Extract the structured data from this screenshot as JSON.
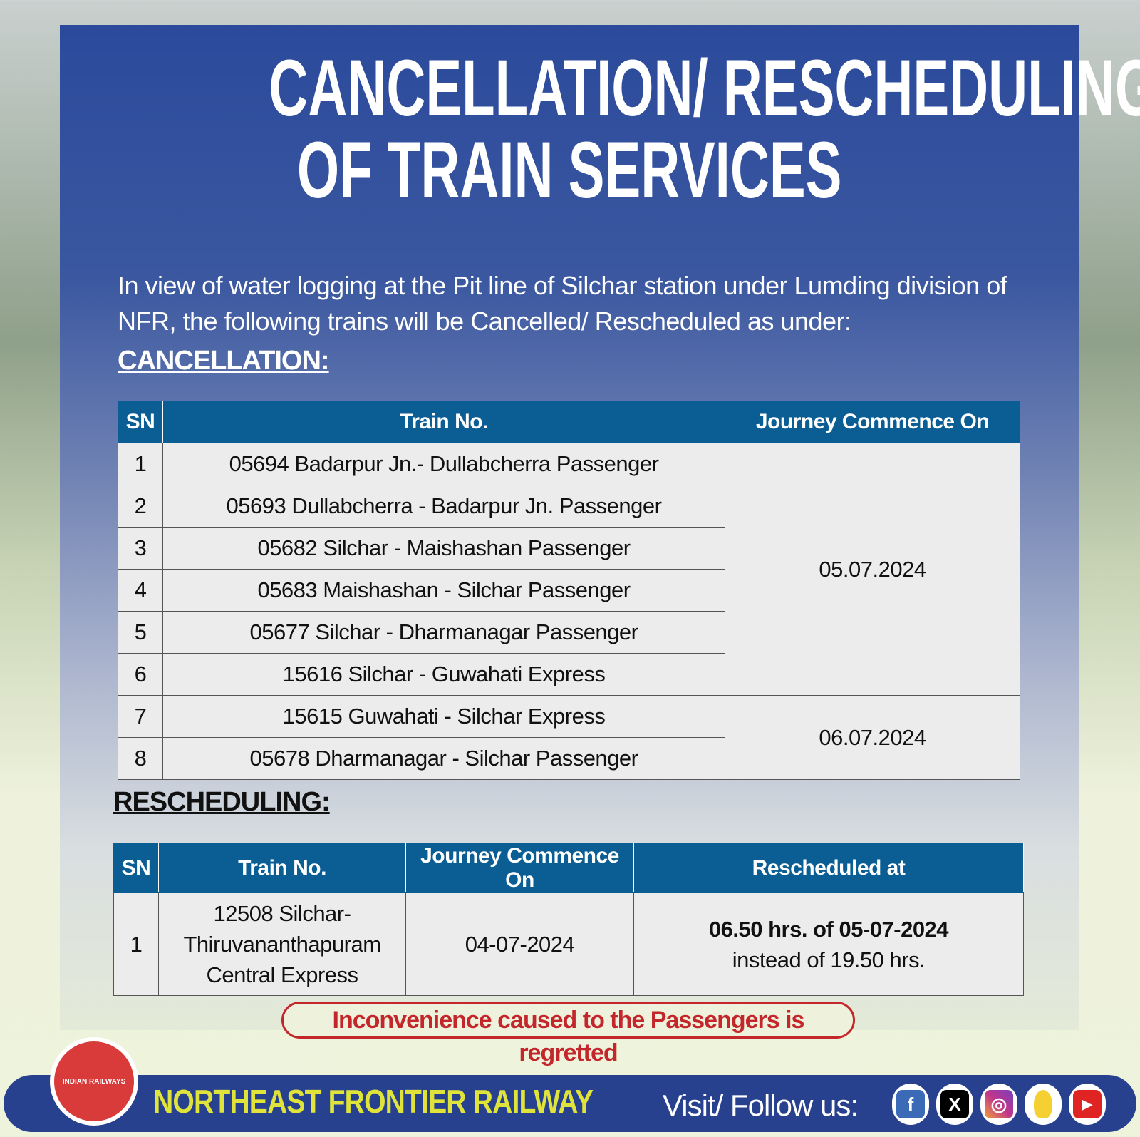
{
  "title": {
    "line1": "CANCELLATION/ RESCHEDULING",
    "line2": "OF TRAIN SERVICES"
  },
  "intro": "In view of water logging at the Pit line of Silchar station under Lumding division of NFR, the following trains will be Cancelled/ Rescheduled as under:",
  "cancellation": {
    "heading": "CANCELLATION:",
    "headers": [
      "SN",
      "Train No.",
      "Journey Commence On"
    ],
    "rows": [
      {
        "sn": "1",
        "train": "05694 Badarpur Jn.- Dullabcherra Passenger"
      },
      {
        "sn": "2",
        "train": "05693 Dullabcherra - Badarpur Jn. Passenger"
      },
      {
        "sn": "3",
        "train": "05682 Silchar - Maishashan Passenger"
      },
      {
        "sn": "4",
        "train": "05683 Maishashan - Silchar Passenger"
      },
      {
        "sn": "5",
        "train": "05677 Silchar - Dharmanagar Passenger"
      },
      {
        "sn": "6",
        "train": "15616 Silchar - Guwahati Express"
      },
      {
        "sn": "7",
        "train": "15615 Guwahati - Silchar Express"
      },
      {
        "sn": "8",
        "train": "05678 Dharmanagar - Silchar Passenger"
      }
    ],
    "dates": [
      "05.07.2024",
      "06.07.2024"
    ]
  },
  "rescheduling": {
    "heading": "RESCHEDULING:",
    "headers": [
      "SN",
      "Train No.",
      "Journey Commence On",
      "Rescheduled at"
    ],
    "rows": [
      {
        "sn": "1",
        "train": "12508 Silchar-Thiruvananthapuram Central Express",
        "date": "04-07-2024",
        "new_time": "06.50 hrs. of 05-07-2024",
        "instead": "instead of 19.50 hrs."
      }
    ]
  },
  "notice": "Inconvenience caused to the Passengers is regretted",
  "footer": {
    "org": "NORTHEAST FRONTIER RAILWAY",
    "logo_text": "INDIAN RAILWAYS",
    "follow": "Visit/ Follow us:",
    "social": [
      "facebook",
      "x",
      "instagram",
      "koo",
      "youtube"
    ]
  },
  "colors": {
    "header": "#0b5e94",
    "footer": "#27418e",
    "org": "#dfe33a",
    "notice": "#c3272b"
  }
}
